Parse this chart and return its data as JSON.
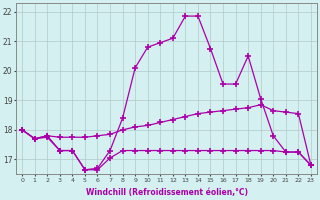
{
  "x": [
    0,
    1,
    2,
    3,
    4,
    5,
    6,
    7,
    8,
    9,
    10,
    11,
    12,
    13,
    14,
    15,
    16,
    17,
    18,
    19,
    20,
    21,
    22,
    23
  ],
  "line_upper": [
    18.0,
    17.7,
    17.8,
    17.3,
    17.3,
    16.65,
    16.7,
    17.3,
    18.4,
    20.1,
    20.8,
    20.95,
    21.1,
    21.85,
    21.85,
    20.75,
    19.55,
    19.55,
    20.5,
    19.05,
    17.8,
    17.25,
    17.25,
    16.8
  ],
  "line_mid": [
    18.0,
    17.7,
    17.8,
    17.75,
    17.75,
    17.75,
    17.8,
    17.85,
    18.0,
    18.1,
    18.15,
    18.25,
    18.35,
    18.45,
    18.55,
    18.6,
    18.65,
    18.7,
    18.75,
    18.85,
    18.65,
    18.6,
    18.55,
    16.8
  ],
  "line_lower": [
    18.0,
    17.7,
    17.75,
    17.3,
    17.3,
    16.65,
    16.65,
    17.05,
    17.3,
    17.3,
    17.3,
    17.3,
    17.3,
    17.3,
    17.3,
    17.3,
    17.3,
    17.3,
    17.3,
    17.3,
    17.3,
    17.25,
    17.25,
    16.8
  ],
  "line_color": "#aa00aa",
  "bg_color": "#d5f0f0",
  "grid_color": "#b0c8c8",
  "xlabel": "Windchill (Refroidissement éolien,°C)",
  "xlim": [
    -0.5,
    23.5
  ],
  "ylim": [
    16.5,
    22.3
  ],
  "yticks": [
    17,
    18,
    19,
    20,
    21,
    22
  ],
  "xticks": [
    0,
    1,
    2,
    3,
    4,
    5,
    6,
    7,
    8,
    9,
    10,
    11,
    12,
    13,
    14,
    15,
    16,
    17,
    18,
    19,
    20,
    21,
    22,
    23
  ],
  "marker": "+",
  "markersize": 4,
  "linewidth": 0.9
}
